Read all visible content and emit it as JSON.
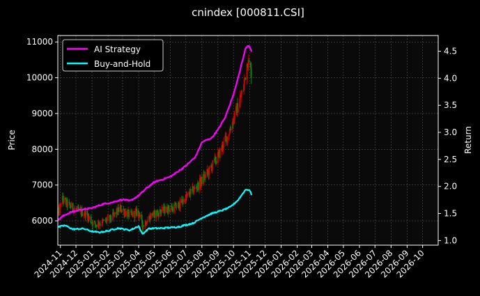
{
  "chart_data": {
    "type": "line",
    "title": "cnindex [000811.CSI]",
    "ylabel": "Price",
    "y2label": "Return",
    "ylim": [
      5320,
      11180
    ],
    "y2lim": [
      0.915,
      4.79
    ],
    "x_range": [
      "2024-10-27",
      "2026-10-31"
    ],
    "x_ticks": [
      "2024-11",
      "2024-12",
      "2025-01",
      "2025-02",
      "2025-03",
      "2025-04",
      "2025-05",
      "2025-06",
      "2025-07",
      "2025-08",
      "2025-09",
      "2025-10",
      "2025-11",
      "2025-12",
      "2026-01",
      "2026-02",
      "2026-03",
      "2026-04",
      "2026-05",
      "2026-06",
      "2026-07",
      "2026-08",
      "2026-09",
      "2026-10"
    ],
    "y_ticks": [
      6000,
      7000,
      8000,
      9000,
      10000,
      11000
    ],
    "y2_ticks": [
      1.0,
      1.5,
      2.0,
      2.5,
      3.0,
      3.5,
      4.0,
      4.5
    ],
    "grid": true,
    "legend_position": "top-left",
    "colors": {
      "background": "#000000",
      "plot_background": "#0a0a0a",
      "ai_strategy": "#ff00ff",
      "buy_and_hold": "#00ffff",
      "candle_up": "#d00000",
      "candle_down": "#0a8a0a",
      "grid": "#555555",
      "text": "#ffffff"
    },
    "series": [
      {
        "name": "AI Strategy",
        "axis": "right",
        "points": [
          [
            "2024-10-28",
            1.38
          ],
          [
            "2024-11-05",
            1.45
          ],
          [
            "2024-11-20",
            1.52
          ],
          [
            "2024-12-10",
            1.57
          ],
          [
            "2025-01-01",
            1.6
          ],
          [
            "2025-01-20",
            1.67
          ],
          [
            "2025-02-10",
            1.71
          ],
          [
            "2025-03-01",
            1.76
          ],
          [
            "2025-03-15",
            1.73
          ],
          [
            "2025-04-01",
            1.83
          ],
          [
            "2025-04-15",
            1.96
          ],
          [
            "2025-05-01",
            2.08
          ],
          [
            "2025-06-01",
            2.18
          ],
          [
            "2025-07-01",
            2.38
          ],
          [
            "2025-07-20",
            2.55
          ],
          [
            "2025-08-01",
            2.82
          ],
          [
            "2025-08-20",
            2.9
          ],
          [
            "2025-09-01",
            3.05
          ],
          [
            "2025-09-15",
            3.28
          ],
          [
            "2025-10-01",
            3.7
          ],
          [
            "2025-10-15",
            4.2
          ],
          [
            "2025-10-25",
            4.58
          ],
          [
            "2025-11-01",
            4.6
          ],
          [
            "2025-11-05",
            4.5
          ]
        ]
      },
      {
        "name": "Buy-and-Hold",
        "axis": "right",
        "points": [
          [
            "2024-10-28",
            1.25
          ],
          [
            "2024-11-10",
            1.28
          ],
          [
            "2024-11-25",
            1.21
          ],
          [
            "2024-12-15",
            1.22
          ],
          [
            "2025-01-01",
            1.17
          ],
          [
            "2025-01-15",
            1.15
          ],
          [
            "2025-02-01",
            1.18
          ],
          [
            "2025-02-20",
            1.23
          ],
          [
            "2025-03-15",
            1.19
          ],
          [
            "2025-04-01",
            1.27
          ],
          [
            "2025-04-08",
            1.12
          ],
          [
            "2025-04-20",
            1.22
          ],
          [
            "2025-05-15",
            1.23
          ],
          [
            "2025-06-15",
            1.25
          ],
          [
            "2025-07-15",
            1.32
          ],
          [
            "2025-08-01",
            1.42
          ],
          [
            "2025-08-20",
            1.5
          ],
          [
            "2025-09-10",
            1.56
          ],
          [
            "2025-09-25",
            1.62
          ],
          [
            "2025-10-10",
            1.75
          ],
          [
            "2025-10-25",
            1.95
          ],
          [
            "2025-11-01",
            1.93
          ],
          [
            "2025-11-05",
            1.85
          ]
        ]
      }
    ],
    "price_path": [
      [
        "2024-10-28",
        6200
      ],
      [
        "2024-11-05",
        6600
      ],
      [
        "2024-11-15",
        6450
      ],
      [
        "2024-12-01",
        6300
      ],
      [
        "2024-12-20",
        6200
      ],
      [
        "2025-01-05",
        5900
      ],
      [
        "2025-01-20",
        5950
      ],
      [
        "2025-02-05",
        6050
      ],
      [
        "2025-02-25",
        6350
      ],
      [
        "2025-03-15",
        6150
      ],
      [
        "2025-04-01",
        6250
      ],
      [
        "2025-04-08",
        5850
      ],
      [
        "2025-04-25",
        6150
      ],
      [
        "2025-05-20",
        6300
      ],
      [
        "2025-06-15",
        6400
      ],
      [
        "2025-07-05",
        6700
      ],
      [
        "2025-07-25",
        7000
      ],
      [
        "2025-08-15",
        7400
      ],
      [
        "2025-09-01",
        7800
      ],
      [
        "2025-09-20",
        8400
      ],
      [
        "2025-10-05",
        9000
      ],
      [
        "2025-10-20",
        9700
      ],
      [
        "2025-10-28",
        10500
      ],
      [
        "2025-11-05",
        10100
      ]
    ]
  }
}
